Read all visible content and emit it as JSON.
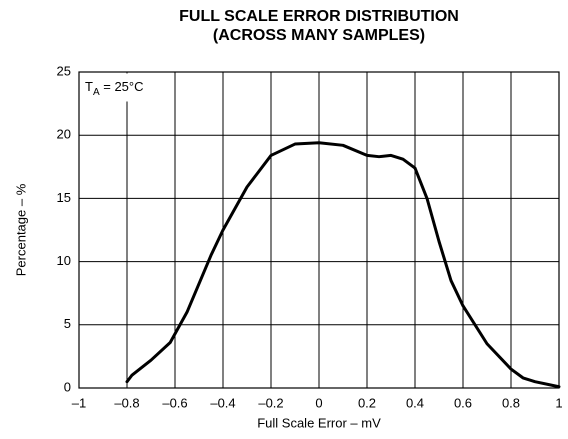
{
  "chart_data": {
    "type": "line",
    "title": [
      "FULL SCALE ERROR DISTRIBUTION",
      "(ACROSS MANY SAMPLES)"
    ],
    "xlabel": "Full Scale Error – mV",
    "ylabel": "Percentage – %",
    "annotation": {
      "main": "T",
      "sub": "A",
      "rest": " = 25°C"
    },
    "x": [
      -0.8,
      -0.78,
      -0.7,
      -0.62,
      -0.55,
      -0.45,
      -0.4,
      -0.3,
      -0.2,
      -0.1,
      0,
      0.1,
      0.2,
      0.25,
      0.3,
      0.35,
      0.4,
      0.45,
      0.5,
      0.55,
      0.6,
      0.7,
      0.8,
      0.85,
      0.9,
      1.0
    ],
    "series": [
      {
        "color": "#000000",
        "values": [
          0.5,
          1.0,
          2.2,
          3.6,
          6.0,
          10.5,
          12.5,
          15.9,
          18.4,
          19.3,
          19.4,
          19.2,
          18.4,
          18.3,
          18.4,
          18.1,
          17.4,
          15.0,
          11.6,
          8.5,
          6.5,
          3.5,
          1.5,
          0.8,
          0.5,
          0.1
        ]
      }
    ],
    "xlim": [
      -1,
      1
    ],
    "xticks": [
      {
        "value": -1,
        "label": "–1"
      },
      {
        "value": -0.8,
        "label": "–0.8"
      },
      {
        "value": -0.6,
        "label": "–0.6"
      },
      {
        "value": -0.4,
        "label": "–0.4"
      },
      {
        "value": -0.2,
        "label": "–0.2"
      },
      0,
      0.2,
      0.4,
      0.6,
      0.8,
      1
    ],
    "ylim": [
      0,
      25
    ],
    "yticks": [
      0,
      5,
      10,
      15,
      20,
      25
    ],
    "grid": true
  }
}
